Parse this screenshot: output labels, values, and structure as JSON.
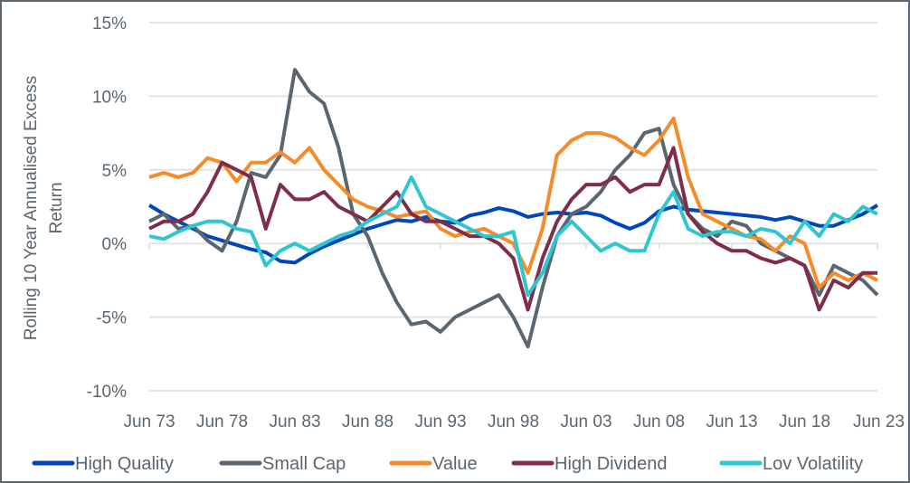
{
  "chart_data": {
    "type": "line",
    "title": "",
    "xlabel": "",
    "ylabel": "Rolling 10 Year Annualised Excess Return",
    "ylim": [
      -10,
      15
    ],
    "yticks": [
      15,
      10,
      5,
      0,
      -5,
      -10
    ],
    "ytick_labels": [
      "15%",
      "10%",
      "5%",
      "0%",
      "-5%",
      "-10%"
    ],
    "xtick_labels": [
      "Jun 73",
      "Jun 78",
      "Jun 83",
      "Jun 88",
      "Jun 93",
      "Jun 98",
      "Jun 03",
      "Jun 08",
      "Jun 13",
      "Jun 18",
      "Jun 23"
    ],
    "x_range": [
      1973,
      2023
    ],
    "grid": "horizontal",
    "legend_position": "bottom",
    "x": [
      1973,
      1974,
      1975,
      1976,
      1977,
      1978,
      1979,
      1980,
      1981,
      1982,
      1983,
      1984,
      1985,
      1986,
      1987,
      1988,
      1989,
      1990,
      1991,
      1992,
      1993,
      1994,
      1995,
      1996,
      1997,
      1998,
      1999,
      2000,
      2001,
      2002,
      2003,
      2004,
      2005,
      2006,
      2007,
      2008,
      2009,
      2010,
      2011,
      2012,
      2013,
      2014,
      2015,
      2016,
      2017,
      2018,
      2019,
      2020,
      2021,
      2022,
      2023
    ],
    "series": [
      {
        "name": "High Quality",
        "color": "#0047bb",
        "values": [
          2.6,
          2.0,
          1.5,
          1.0,
          0.5,
          0.2,
          -0.1,
          -0.4,
          -0.6,
          -1.2,
          -1.3,
          -0.7,
          -0.2,
          0.2,
          0.6,
          1.0,
          1.3,
          1.6,
          1.5,
          1.8,
          1.5,
          1.4,
          1.9,
          2.1,
          2.4,
          2.2,
          1.8,
          2.0,
          2.1,
          2.0,
          2.1,
          1.9,
          1.4,
          1.0,
          1.4,
          2.2,
          2.5,
          2.3,
          2.2,
          2.1,
          2.0,
          1.9,
          1.8,
          1.6,
          1.8,
          1.5,
          1.2,
          1.2,
          1.6,
          2.0,
          2.6
        ]
      },
      {
        "name": "Small Cap",
        "color": "#5a6670",
        "values": [
          1.5,
          2.0,
          1.0,
          1.2,
          0.2,
          -0.5,
          1.5,
          4.8,
          4.5,
          6.0,
          11.8,
          10.3,
          9.5,
          6.5,
          2.0,
          0.5,
          -2.0,
          -4.0,
          -5.5,
          -5.3,
          -6.0,
          -5.0,
          -4.5,
          -4.0,
          -3.5,
          -5.0,
          -7.0,
          -3.0,
          0.5,
          2.0,
          2.5,
          3.5,
          5.0,
          6.0,
          7.5,
          7.8,
          4.0,
          2.0,
          1.0,
          0.5,
          1.5,
          1.2,
          0.0,
          -0.5,
          -1.0,
          -1.5,
          -3.5,
          -1.5,
          -2.0,
          -2.5,
          -3.5
        ]
      },
      {
        "name": "Value",
        "color": "#f68b2c",
        "values": [
          4.5,
          4.8,
          4.5,
          4.8,
          5.8,
          5.5,
          4.2,
          5.5,
          5.5,
          6.2,
          5.5,
          6.5,
          5.0,
          4.0,
          3.0,
          2.5,
          2.2,
          1.8,
          2.0,
          2.2,
          1.0,
          0.5,
          0.8,
          1.0,
          0.5,
          0.0,
          -2.0,
          1.0,
          6.0,
          7.0,
          7.5,
          7.5,
          7.2,
          6.5,
          6.0,
          7.0,
          8.5,
          4.5,
          2.0,
          1.5,
          1.0,
          0.5,
          0.3,
          -0.5,
          0.5,
          0.0,
          -3.0,
          -2.0,
          -2.5,
          -2.0,
          -2.5
        ]
      },
      {
        "name": "High Dividend",
        "color": "#7e2d4b",
        "values": [
          1.0,
          1.5,
          1.5,
          2.0,
          3.5,
          5.5,
          5.0,
          4.5,
          1.0,
          4.0,
          3.0,
          3.0,
          3.5,
          2.5,
          2.0,
          1.5,
          2.5,
          3.5,
          2.0,
          1.5,
          1.5,
          1.0,
          0.5,
          0.5,
          0.0,
          -1.0,
          -4.5,
          -1.0,
          1.5,
          3.0,
          4.0,
          4.0,
          4.5,
          3.5,
          4.0,
          4.0,
          6.5,
          2.0,
          0.8,
          0.0,
          -0.5,
          -0.5,
          -1.0,
          -1.3,
          -1.0,
          -1.5,
          -4.5,
          -2.5,
          -3.0,
          -2.0,
          -2.0
        ]
      },
      {
        "name": "Lov Volatility",
        "color": "#2ec6d0",
        "values": [
          0.5,
          0.3,
          0.8,
          1.2,
          1.5,
          1.5,
          1.0,
          0.8,
          -1.5,
          -0.5,
          0.0,
          -0.5,
          0.0,
          0.5,
          0.8,
          1.5,
          2.0,
          2.5,
          4.5,
          2.5,
          2.0,
          1.5,
          1.0,
          0.5,
          0.5,
          0.8,
          -3.5,
          -2.0,
          0.5,
          1.5,
          0.5,
          -0.5,
          0.0,
          -0.5,
          -0.5,
          2.0,
          3.5,
          1.0,
          0.5,
          0.8,
          0.8,
          0.5,
          1.0,
          0.8,
          0.0,
          1.5,
          0.5,
          2.0,
          1.5,
          2.5,
          2.0
        ]
      }
    ]
  }
}
